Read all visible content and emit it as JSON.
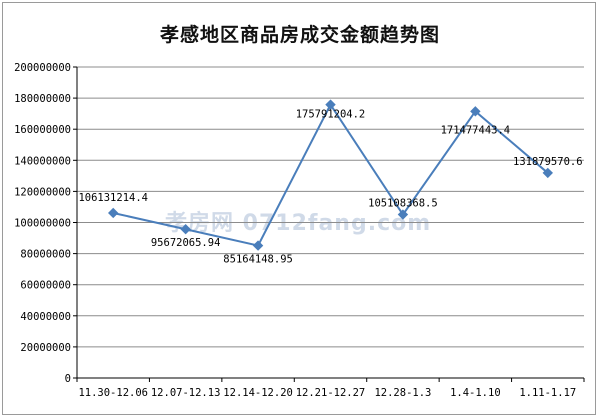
{
  "chart_data": {
    "type": "line",
    "title": "孝感地区商品房成交金额趋势图",
    "categories": [
      "11.30-12.06",
      "12.07-12.13",
      "12.14-12.20",
      "12.21-12.27",
      "12.28-1.3",
      "1.4-1.10",
      "1.11-1.17"
    ],
    "values": [
      106131214.4,
      95672065.94,
      85164148.95,
      175791204.2,
      105108368.5,
      171477443.4,
      131879570.6
    ],
    "data_labels": [
      "106131214.4",
      "95672065.94",
      "85164148.95",
      "175791204.2",
      "105108368.5",
      "171477443.4",
      "131879570.6"
    ],
    "yticks": [
      "0",
      "20000000",
      "40000000",
      "60000000",
      "80000000",
      "100000000",
      "120000000",
      "140000000",
      "160000000",
      "180000000",
      "200000000"
    ],
    "ylim": [
      0,
      200000000
    ],
    "grid": true,
    "legend": "none",
    "colors": {
      "line": "#4a7ebb",
      "grid": "#8c8c8c",
      "axis": "#000000"
    }
  },
  "watermark": "孝房网 0712fang.com"
}
